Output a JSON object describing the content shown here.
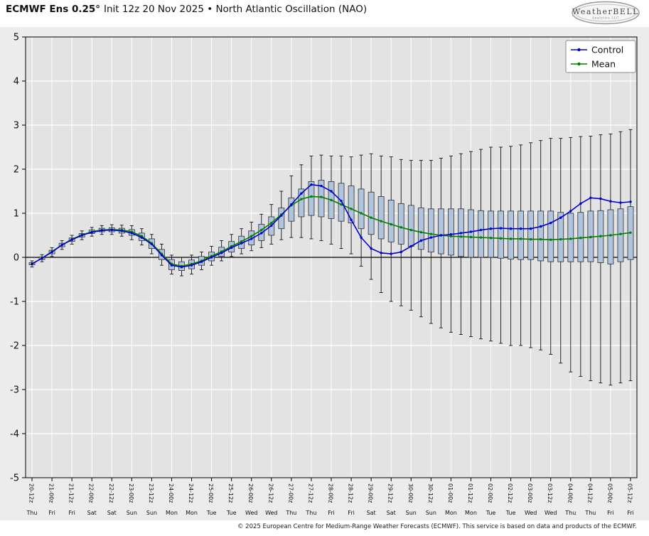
{
  "header": {
    "title_bold": "ECMWF Ens 0.25°",
    "title_rest": "Init 12z 20 Nov 2025 • North Atlantic Oscillation (NAO)",
    "logo_text": "WeatherBELL",
    "logo_sub": "Analytics LLC"
  },
  "footer": {
    "copyright": "© 2025 European Centre for Medium-Range Weather Forecasts (ECMWF). This service is based on data and products of the ECMWF."
  },
  "chart_data": {
    "type": "line",
    "subtype": "ensemble-box-whisker",
    "title": "ECMWF Ens 0.25° Init 12z 20 Nov 2025 • North Atlantic Oscillation (NAO)",
    "xlabel": "",
    "ylabel": "",
    "ylim": [
      -5,
      5
    ],
    "yticks": [
      -5,
      -4,
      -3,
      -2,
      -1,
      0,
      1,
      2,
      3,
      4,
      5
    ],
    "grid": true,
    "legend_position": "upper right",
    "x_step_hours": 6,
    "x_tick_labels": [
      "20-12z",
      "21-00z",
      "21-12z",
      "22-00z",
      "22-12z",
      "23-00z",
      "23-12z",
      "24-00z",
      "24-12z",
      "25-00z",
      "25-12z",
      "26-00z",
      "26-12z",
      "27-00z",
      "27-12z",
      "28-00z",
      "28-12z",
      "29-00z",
      "29-12z",
      "30-00z",
      "30-12z",
      "01-00z",
      "01-12z",
      "02-00z",
      "02-12z",
      "03-00z",
      "03-12z",
      "04-00z",
      "04-12z",
      "05-00z",
      "05-12z"
    ],
    "x_day_labels": [
      "Thu",
      "Fri",
      "Fri",
      "Sat",
      "Sat",
      "Sun",
      "Sun",
      "Mon",
      "Mon",
      "Tue",
      "Tue",
      "Wed",
      "Wed",
      "Thu",
      "Thu",
      "Fri",
      "Fri",
      "Sat",
      "Sat",
      "Sun",
      "Sun",
      "Mon",
      "Mon",
      "Tue",
      "Tue",
      "Wed",
      "Wed",
      "Thu",
      "Thu",
      "Fri",
      "Fri"
    ],
    "series": [
      {
        "name": "Control",
        "color": "#0000cd",
        "values": [
          -0.15,
          -0.02,
          0.12,
          0.28,
          0.4,
          0.5,
          0.57,
          0.61,
          0.62,
          0.6,
          0.55,
          0.45,
          0.3,
          0.05,
          -0.18,
          -0.22,
          -0.18,
          -0.1,
          0.0,
          0.1,
          0.22,
          0.32,
          0.42,
          0.55,
          0.72,
          0.95,
          1.2,
          1.45,
          1.65,
          1.62,
          1.5,
          1.28,
          0.85,
          0.45,
          0.2,
          0.1,
          0.08,
          0.12,
          0.25,
          0.38,
          0.45,
          0.5,
          0.52,
          0.55,
          0.58,
          0.62,
          0.65,
          0.66,
          0.65,
          0.65,
          0.65,
          0.7,
          0.78,
          0.9,
          1.05,
          1.22,
          1.35,
          1.33,
          1.27,
          1.24,
          1.26
        ]
      },
      {
        "name": "Mean",
        "color": "#008000",
        "values": [
          -0.15,
          -0.02,
          0.13,
          0.28,
          0.41,
          0.51,
          0.58,
          0.62,
          0.63,
          0.62,
          0.58,
          0.48,
          0.32,
          0.08,
          -0.15,
          -0.2,
          -0.15,
          -0.08,
          0.03,
          0.13,
          0.25,
          0.36,
          0.48,
          0.62,
          0.78,
          0.97,
          1.18,
          1.32,
          1.38,
          1.37,
          1.3,
          1.2,
          1.1,
          1.0,
          0.9,
          0.82,
          0.75,
          0.68,
          0.62,
          0.57,
          0.53,
          0.5,
          0.48,
          0.47,
          0.46,
          0.45,
          0.44,
          0.43,
          0.42,
          0.42,
          0.41,
          0.41,
          0.4,
          0.41,
          0.42,
          0.44,
          0.46,
          0.48,
          0.5,
          0.53,
          0.56
        ]
      }
    ],
    "boxplot": {
      "note": "whisker_low, box_q1, box_q3, whisker_high per 6h step",
      "values": [
        [
          -0.22,
          -0.17,
          -0.12,
          -0.08
        ],
        [
          -0.1,
          -0.05,
          0.01,
          0.06
        ],
        [
          0.02,
          0.08,
          0.16,
          0.22
        ],
        [
          0.18,
          0.24,
          0.32,
          0.38
        ],
        [
          0.3,
          0.36,
          0.44,
          0.5
        ],
        [
          0.4,
          0.46,
          0.54,
          0.6
        ],
        [
          0.48,
          0.54,
          0.62,
          0.68
        ],
        [
          0.52,
          0.58,
          0.66,
          0.72
        ],
        [
          0.52,
          0.58,
          0.67,
          0.74
        ],
        [
          0.48,
          0.55,
          0.66,
          0.73
        ],
        [
          0.4,
          0.5,
          0.63,
          0.72
        ],
        [
          0.28,
          0.38,
          0.55,
          0.65
        ],
        [
          0.08,
          0.2,
          0.42,
          0.52
        ],
        [
          -0.18,
          -0.05,
          0.18,
          0.3
        ],
        [
          -0.38,
          -0.28,
          -0.05,
          0.05
        ],
        [
          -0.42,
          -0.3,
          -0.1,
          0.0
        ],
        [
          -0.38,
          -0.26,
          -0.06,
          0.05
        ],
        [
          -0.28,
          -0.18,
          0.02,
          0.12
        ],
        [
          -0.18,
          -0.08,
          0.12,
          0.25
        ],
        [
          -0.08,
          0.02,
          0.23,
          0.38
        ],
        [
          0.02,
          0.12,
          0.36,
          0.52
        ],
        [
          0.08,
          0.2,
          0.48,
          0.65
        ],
        [
          0.15,
          0.28,
          0.6,
          0.8
        ],
        [
          0.22,
          0.38,
          0.75,
          0.98
        ],
        [
          0.3,
          0.5,
          0.92,
          1.2
        ],
        [
          0.4,
          0.65,
          1.12,
          1.5
        ],
        [
          0.45,
          0.82,
          1.35,
          1.85
        ],
        [
          0.45,
          0.92,
          1.55,
          2.1
        ],
        [
          0.42,
          0.95,
          1.72,
          2.3
        ],
        [
          0.38,
          0.92,
          1.75,
          2.32
        ],
        [
          0.3,
          0.88,
          1.72,
          2.3
        ],
        [
          0.2,
          0.82,
          1.68,
          2.3
        ],
        [
          0.08,
          0.78,
          1.62,
          2.28
        ],
        [
          -0.2,
          0.65,
          1.55,
          2.32
        ],
        [
          -0.5,
          0.52,
          1.48,
          2.35
        ],
        [
          -0.8,
          0.42,
          1.38,
          2.3
        ],
        [
          -1.0,
          0.35,
          1.3,
          2.28
        ],
        [
          -1.1,
          0.3,
          1.22,
          2.22
        ],
        [
          -1.2,
          0.25,
          1.18,
          2.2
        ],
        [
          -1.35,
          0.18,
          1.12,
          2.2
        ],
        [
          -1.5,
          0.12,
          1.1,
          2.2
        ],
        [
          -1.6,
          0.08,
          1.1,
          2.25
        ],
        [
          -1.7,
          0.05,
          1.1,
          2.3
        ],
        [
          -1.75,
          0.02,
          1.1,
          2.35
        ],
        [
          -1.8,
          0.0,
          1.08,
          2.4
        ],
        [
          -1.85,
          0.0,
          1.06,
          2.45
        ],
        [
          -1.9,
          0.0,
          1.05,
          2.5
        ],
        [
          -1.95,
          -0.02,
          1.05,
          2.5
        ],
        [
          -2.0,
          -0.04,
          1.05,
          2.52
        ],
        [
          -2.0,
          -0.05,
          1.05,
          2.55
        ],
        [
          -2.05,
          -0.05,
          1.05,
          2.6
        ],
        [
          -2.1,
          -0.08,
          1.05,
          2.65
        ],
        [
          -2.2,
          -0.1,
          1.05,
          2.7
        ],
        [
          -2.4,
          -0.1,
          1.02,
          2.7
        ],
        [
          -2.6,
          -0.1,
          1.0,
          2.72
        ],
        [
          -2.7,
          -0.1,
          1.02,
          2.74
        ],
        [
          -2.8,
          -0.1,
          1.05,
          2.75
        ],
        [
          -2.85,
          -0.12,
          1.06,
          2.78
        ],
        [
          -2.9,
          -0.15,
          1.08,
          2.8
        ],
        [
          -2.85,
          -0.1,
          1.1,
          2.85
        ],
        [
          -2.8,
          -0.05,
          1.15,
          2.9
        ]
      ]
    },
    "colors": {
      "figure_bg": "#ececec",
      "plot_bg": "#e3e3e3",
      "grid": "#ffffff",
      "box_fill": "#b0c4de",
      "box_edge": "#2f2f2f",
      "whisker": "#111111",
      "zero_line": "#000000",
      "spine": "#000000"
    },
    "legend": [
      "Control",
      "Mean"
    ]
  }
}
